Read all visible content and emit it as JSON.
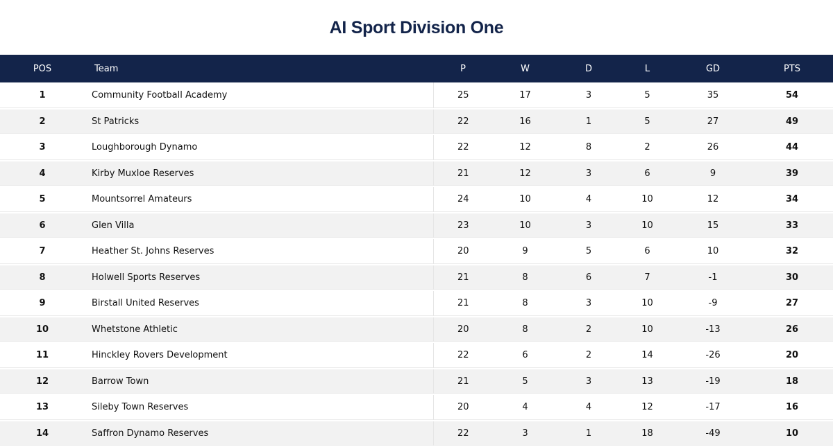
{
  "title": "AI Sport Division One",
  "columns": {
    "pos": "POS",
    "team": "Team",
    "p": "P",
    "w": "W",
    "d": "D",
    "l": "L",
    "gd": "GD",
    "pts": "PTS"
  },
  "rows": [
    {
      "pos": "1",
      "team": "Community Football Academy",
      "p": "25",
      "w": "17",
      "d": "3",
      "l": "5",
      "gd": "35",
      "pts": "54"
    },
    {
      "pos": "2",
      "team": "St Patricks",
      "p": "22",
      "w": "16",
      "d": "1",
      "l": "5",
      "gd": "27",
      "pts": "49"
    },
    {
      "pos": "3",
      "team": "Loughborough Dynamo",
      "p": "22",
      "w": "12",
      "d": "8",
      "l": "2",
      "gd": "26",
      "pts": "44"
    },
    {
      "pos": "4",
      "team": "Kirby Muxloe Reserves",
      "p": "21",
      "w": "12",
      "d": "3",
      "l": "6",
      "gd": "9",
      "pts": "39"
    },
    {
      "pos": "5",
      "team": "Mountsorrel Amateurs",
      "p": "24",
      "w": "10",
      "d": "4",
      "l": "10",
      "gd": "12",
      "pts": "34"
    },
    {
      "pos": "6",
      "team": "Glen Villa",
      "p": "23",
      "w": "10",
      "d": "3",
      "l": "10",
      "gd": "15",
      "pts": "33"
    },
    {
      "pos": "7",
      "team": "Heather St. Johns Reserves",
      "p": "20",
      "w": "9",
      "d": "5",
      "l": "6",
      "gd": "10",
      "pts": "32"
    },
    {
      "pos": "8",
      "team": "Holwell Sports Reserves",
      "p": "21",
      "w": "8",
      "d": "6",
      "l": "7",
      "gd": "-1",
      "pts": "30"
    },
    {
      "pos": "9",
      "team": "Birstall United Reserves",
      "p": "21",
      "w": "8",
      "d": "3",
      "l": "10",
      "gd": "-9",
      "pts": "27"
    },
    {
      "pos": "10",
      "team": "Whetstone Athletic",
      "p": "20",
      "w": "8",
      "d": "2",
      "l": "10",
      "gd": "-13",
      "pts": "26"
    },
    {
      "pos": "11",
      "team": "Hinckley Rovers Development",
      "p": "22",
      "w": "6",
      "d": "2",
      "l": "14",
      "gd": "-26",
      "pts": "20"
    },
    {
      "pos": "12",
      "team": "Barrow Town",
      "p": "21",
      "w": "5",
      "d": "3",
      "l": "13",
      "gd": "-19",
      "pts": "18"
    },
    {
      "pos": "13",
      "team": "Sileby Town Reserves",
      "p": "20",
      "w": "4",
      "d": "4",
      "l": "12",
      "gd": "-17",
      "pts": "16"
    },
    {
      "pos": "14",
      "team": "Saffron Dynamo Reserves",
      "p": "22",
      "w": "3",
      "d": "1",
      "l": "18",
      "gd": "-49",
      "pts": "10"
    }
  ],
  "colors": {
    "header_bg": "#13244a",
    "title": "#13244a",
    "row_alt": "#f2f2f2"
  }
}
